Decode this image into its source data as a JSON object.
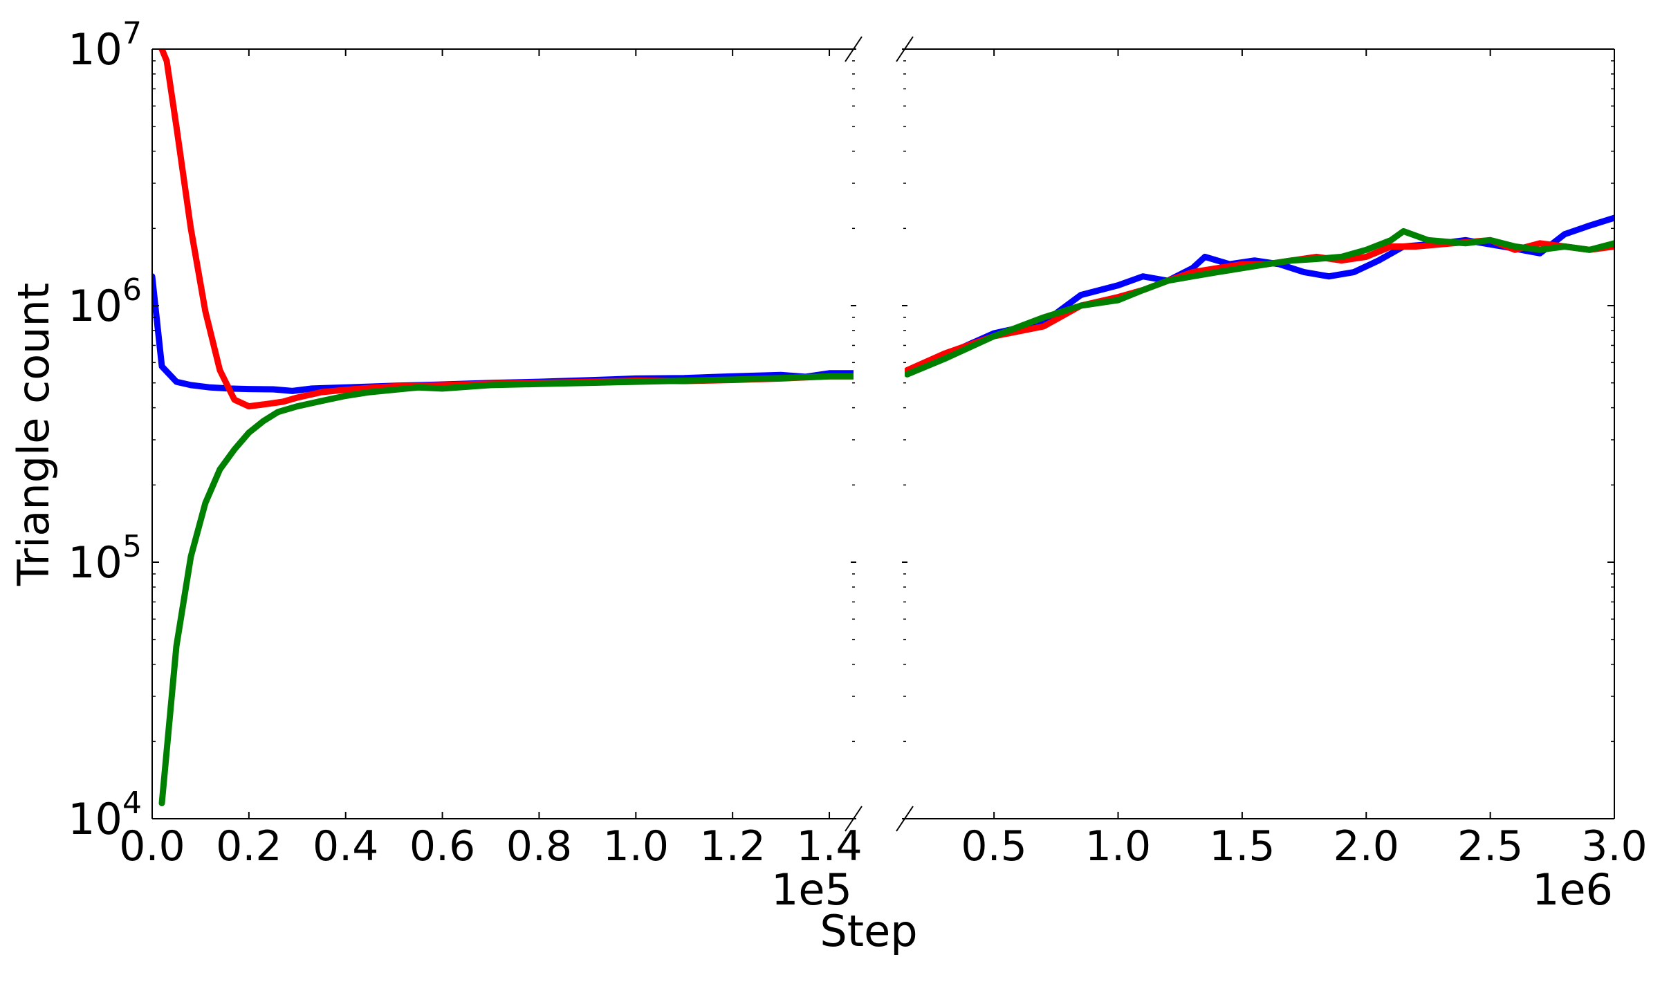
{
  "chart_data": {
    "type": "line",
    "broken_x_axis": true,
    "ylabel": "Triangle count",
    "xlabel": "Step",
    "yscale": "log",
    "ylim": [
      10000,
      10000000
    ],
    "y_ticks": [
      10000,
      100000,
      1000000,
      10000000
    ],
    "y_tick_labels": [
      {
        "base": "10",
        "exp": "4"
      },
      {
        "base": "10",
        "exp": "5"
      },
      {
        "base": "10",
        "exp": "6"
      },
      {
        "base": "10",
        "exp": "7"
      }
    ],
    "grid": false,
    "legend": "none",
    "colors": {
      "blue": "#0000ff",
      "red": "#ff0000",
      "green": "#008000"
    },
    "panels": [
      {
        "xlim": [
          0,
          145000
        ],
        "x_ticks": [
          0,
          20000,
          40000,
          60000,
          80000,
          100000,
          120000,
          140000
        ],
        "x_tick_labels": [
          "0.0",
          "0.2",
          "0.4",
          "0.6",
          "0.8",
          "1.0",
          "1.2",
          "1.4"
        ],
        "x_offset_label": "1e5",
        "series": [
          {
            "color": "#0000ff",
            "x": [
              0,
              2000,
              5000,
              8000,
              12000,
              16000,
              20000,
              25000,
              29000,
              33000,
              40000,
              50000,
              60000,
              70000,
              80000,
              90000,
              100000,
              110000,
              120000,
              130000,
              135000,
              140000,
              145000
            ],
            "y": [
              1300000,
              580000,
              505000,
              490000,
              480000,
              475000,
              473000,
              472000,
              465000,
              475000,
              480000,
              487000,
              493000,
              500000,
              505000,
              512000,
              520000,
              522000,
              530000,
              537000,
              528000,
              545000,
              545000
            ]
          },
          {
            "color": "#ff0000",
            "x": [
              2000,
              3000,
              5000,
              8000,
              11000,
              14000,
              17000,
              20000,
              23000,
              27000,
              30000,
              35000,
              40000,
              45000,
              50000,
              60000,
              70000,
              80000,
              90000,
              100000,
              110000,
              120000,
              130000,
              140000,
              145000
            ],
            "y": [
              10000000,
              9000000,
              5000000,
              2000000,
              950000,
              560000,
              430000,
              405000,
              412000,
              422000,
              438000,
              460000,
              470000,
              478000,
              485000,
              490000,
              497000,
              500000,
              505000,
              510000,
              508000,
              513000,
              520000,
              530000,
              530000
            ]
          },
          {
            "color": "#008000",
            "x": [
              2000,
              5000,
              8000,
              11000,
              14000,
              17000,
              20000,
              23000,
              26000,
              30000,
              35000,
              40000,
              45000,
              50000,
              55000,
              60000,
              70000,
              80000,
              90000,
              100000,
              110000,
              120000,
              130000,
              140000,
              145000
            ],
            "y": [
              11500,
              47000,
              105000,
              170000,
              230000,
              275000,
              320000,
              355000,
              385000,
              405000,
              425000,
              445000,
              460000,
              470000,
              480000,
              475000,
              490000,
              495000,
              500000,
              505000,
              510000,
              515000,
              522000,
              530000,
              530000
            ]
          }
        ]
      },
      {
        "xlim": [
          140000,
          3000000
        ],
        "x_ticks": [
          500000,
          1000000,
          1500000,
          2000000,
          2500000,
          3000000
        ],
        "x_tick_labels": [
          "0.5",
          "1.0",
          "1.5",
          "2.0",
          "2.5",
          "3.0"
        ],
        "x_offset_label": "1e6",
        "series": [
          {
            "color": "#0000ff",
            "x": [
              150000,
              300000,
              500000,
              700000,
              850000,
              1000000,
              1100000,
              1200000,
              1300000,
              1350000,
              1450000,
              1550000,
              1650000,
              1750000,
              1850000,
              1950000,
              2050000,
              2150000,
              2300000,
              2400000,
              2550000,
              2700000,
              2800000,
              2900000,
              3000000
            ],
            "y": [
              550000,
              640000,
              780000,
              860000,
              1100000,
              1200000,
              1300000,
              1250000,
              1400000,
              1550000,
              1450000,
              1500000,
              1450000,
              1350000,
              1300000,
              1350000,
              1500000,
              1700000,
              1750000,
              1800000,
              1700000,
              1600000,
              1900000,
              2050000,
              2200000
            ]
          },
          {
            "color": "#ff0000",
            "x": [
              150000,
              300000,
              500000,
              700000,
              850000,
              1000000,
              1100000,
              1200000,
              1300000,
              1400000,
              1500000,
              1600000,
              1700000,
              1800000,
              1900000,
              2000000,
              2100000,
              2200000,
              2350000,
              2500000,
              2600000,
              2700000,
              2800000,
              2900000,
              3000000
            ],
            "y": [
              560000,
              650000,
              760000,
              830000,
              1000000,
              1080000,
              1150000,
              1250000,
              1350000,
              1400000,
              1450000,
              1450000,
              1500000,
              1550000,
              1500000,
              1550000,
              1700000,
              1700000,
              1750000,
              1800000,
              1650000,
              1750000,
              1700000,
              1650000,
              1700000
            ]
          },
          {
            "color": "#008000",
            "x": [
              150000,
              300000,
              500000,
              700000,
              850000,
              1000000,
              1100000,
              1200000,
              1300000,
              1400000,
              1500000,
              1600000,
              1700000,
              1800000,
              1900000,
              2000000,
              2100000,
              2150000,
              2250000,
              2400000,
              2500000,
              2600000,
              2700000,
              2800000,
              2900000,
              3000000
            ],
            "y": [
              540000,
              620000,
              760000,
              900000,
              1000000,
              1050000,
              1150000,
              1250000,
              1300000,
              1350000,
              1400000,
              1450000,
              1500000,
              1520000,
              1550000,
              1650000,
              1800000,
              1950000,
              1800000,
              1750000,
              1800000,
              1700000,
              1650000,
              1700000,
              1650000,
              1750000
            ]
          }
        ]
      }
    ]
  }
}
